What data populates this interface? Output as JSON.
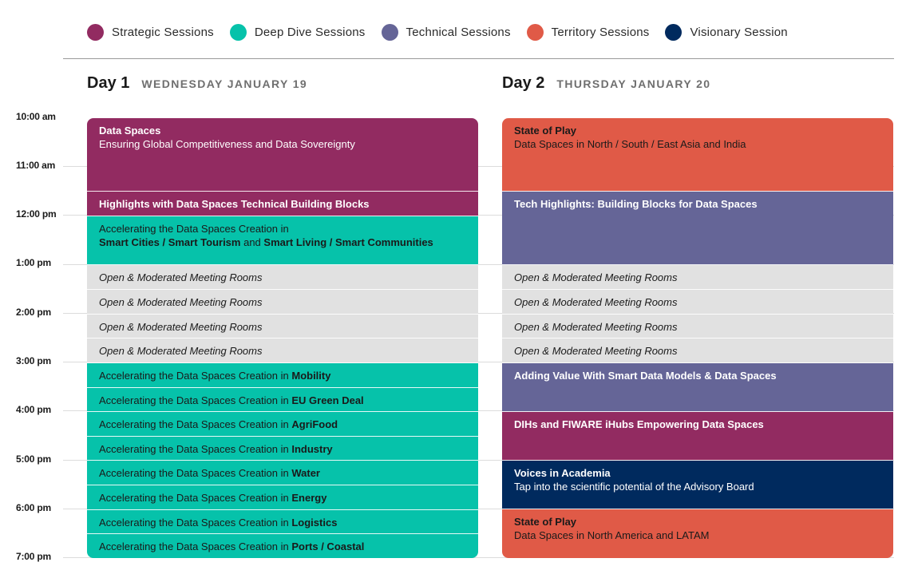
{
  "legend": [
    {
      "label": "Strategic Sessions",
      "color": "#922B61"
    },
    {
      "label": "Deep Dive Sessions",
      "color": "#06C2AA"
    },
    {
      "label": "Technical Sessions",
      "color": "#656597"
    },
    {
      "label": "Territory Sessions",
      "color": "#E05A47"
    },
    {
      "label": "Visionary Session",
      "color": "#002A5E"
    }
  ],
  "days": [
    {
      "title": "Day 1",
      "date": "WEDNESDAY JANUARY 19"
    },
    {
      "title": "Day 2",
      "date": "THURSDAY JANUARY 20"
    }
  ],
  "times": [
    "10:00 am",
    "11:00 am",
    "12:00 pm",
    "1:00 pm",
    "2:00 pm",
    "3:00 pm",
    "4:00 pm",
    "5:00 pm",
    "6:00 pm",
    "7:00 pm"
  ],
  "day1": {
    "s1": {
      "title": "Data Spaces",
      "sub": "Ensuring Global Competitiveness and Data Sovereignty"
    },
    "s2": {
      "title": "Highlights with Data Spaces Technical Building Blocks"
    },
    "s3": {
      "line1": "Accelerating the Data Spaces Creation in",
      "a": "Smart Cities / Smart Tourism",
      "and1": " and ",
      "b": "Smart Living / Smart Communities"
    },
    "open": [
      "Open & Moderated Meeting Rooms",
      "Open & Moderated Meeting Rooms",
      "Open & Moderated Meeting Rooms",
      "Open & Moderated Meeting Rooms"
    ],
    "prefix": "Accelerating the Data Spaces Creation in ",
    "sectors": [
      "Mobility",
      "EU Green Deal",
      "AgriFood",
      "Industry",
      "Water",
      "Energy",
      "Logistics",
      "Ports / Coastal"
    ]
  },
  "day2": {
    "s1": {
      "title": "State of Play",
      "sub": "Data Spaces in North / South / East Asia and India"
    },
    "s2": {
      "title": "Tech Highlights: Building Blocks for Data Spaces"
    },
    "open": [
      "Open & Moderated Meeting Rooms",
      "Open & Moderated Meeting Rooms",
      "Open & Moderated Meeting Rooms",
      "Open & Moderated Meeting Rooms"
    ],
    "s3": {
      "title": "Adding Value With Smart Data Models & Data Spaces"
    },
    "s4": {
      "title": "DIHs and FIWARE iHubs Empowering Data Spaces"
    },
    "s5": {
      "title": "Voices in Academia",
      "sub": "Tap into the scientific potential of the Advisory Board"
    },
    "s6": {
      "title": "State of Play",
      "sub": "Data Spaces in North America and LATAM"
    }
  }
}
